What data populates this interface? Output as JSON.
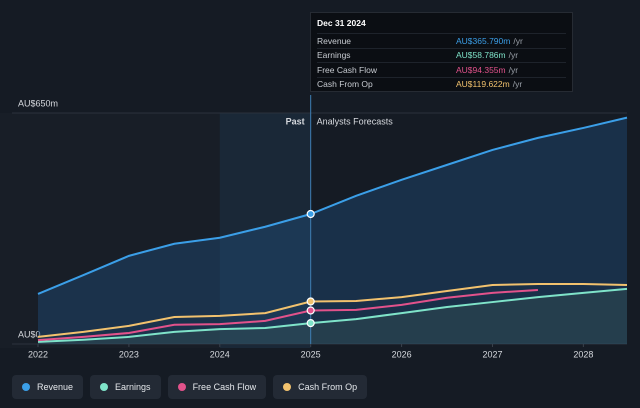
{
  "chart_data": {
    "type": "line",
    "x": [
      2022,
      2022.5,
      2023,
      2023.5,
      2024,
      2024.5,
      2025,
      2025.5,
      2026,
      2026.5,
      2027,
      2027.5,
      2028,
      2028.48
    ],
    "xlim": [
      2022,
      2028.48
    ],
    "xticks": [
      2022,
      2023,
      2024,
      2025,
      2026,
      2027,
      2028
    ],
    "ylim": [
      0,
      650
    ],
    "yticks": [
      {
        "value": 0,
        "label": "AU$0"
      },
      {
        "value": 650,
        "label": "AU$650m"
      }
    ],
    "grid": true,
    "divider": {
      "x": 2025,
      "left_label": "Past",
      "right_label": "Analysts Forecasts"
    },
    "series": [
      {
        "name": "Revenue",
        "color": "#3b9fe8",
        "values": [
          141,
          194,
          248,
          282,
          299,
          330,
          365.79,
          417,
          462,
          504,
          546,
          580,
          608,
          637
        ]
      },
      {
        "name": "Earnings",
        "color": "#7fe3c9",
        "values": [
          6,
          12,
          20,
          34,
          42,
          45,
          58.786,
          70,
          87,
          104,
          118,
          132,
          144,
          155
        ]
      },
      {
        "name": "Free Cash Flow",
        "color": "#e2528b",
        "values": [
          11,
          20,
          31,
          54,
          56,
          65,
          94.355,
          96,
          110,
          130,
          144,
          152,
          null,
          null
        ]
      },
      {
        "name": "Cash From Op",
        "color": "#f2c26e",
        "values": [
          20,
          34,
          51,
          76,
          79,
          87,
          119.622,
          121,
          132,
          149,
          166,
          169,
          169,
          166
        ]
      }
    ],
    "tooltip": {
      "title": "Dec 31 2024",
      "values": [
        "AU$365.790m",
        "AU$58.786m",
        "AU$94.355m",
        "AU$119.622m"
      ],
      "unit": "/yr"
    }
  }
}
